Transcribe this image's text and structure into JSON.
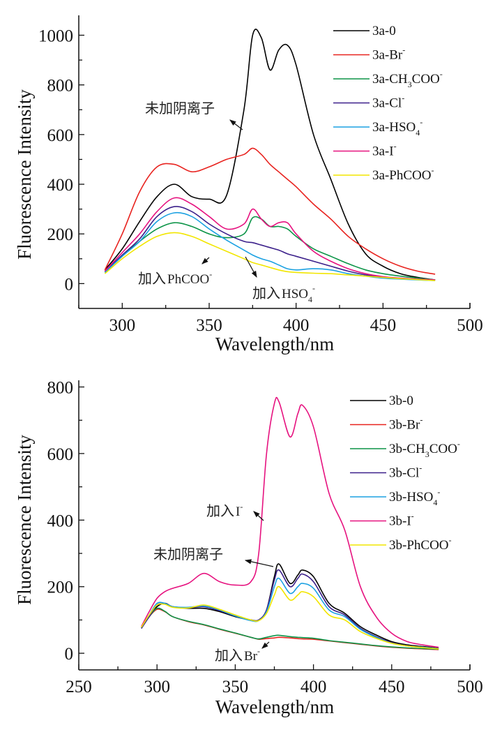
{
  "chart_data": [
    {
      "type": "line",
      "panel": "top",
      "title": "",
      "xlabel": "Wavelength/nm",
      "ylabel": "Fluorescence Intensity",
      "xlim": [
        275,
        500
      ],
      "ylim": [
        -100,
        1080
      ],
      "xticks": [
        300,
        350,
        400,
        450,
        500
      ],
      "yticks": [
        0,
        200,
        400,
        600,
        800,
        1000
      ],
      "grid": false,
      "legend_position": "top-right",
      "x": [
        290,
        300,
        310,
        320,
        330,
        340,
        350,
        360,
        370,
        375,
        380,
        385,
        390,
        395,
        400,
        410,
        420,
        430,
        440,
        450,
        460,
        470,
        480
      ],
      "series": [
        {
          "name": "3a-0",
          "base": "3a-",
          "main": "0",
          "sub": "",
          "sup": "",
          "color": "#000000",
          "values": [
            55,
            140,
            250,
            350,
            400,
            350,
            340,
            355,
            700,
            1000,
            990,
            860,
            940,
            960,
            880,
            600,
            420,
            240,
            120,
            70,
            40,
            25,
            15
          ]
        },
        {
          "name": "3a-Br-",
          "base": "3a-Br",
          "main": "",
          "sub": "",
          "sup": "-",
          "color": "#e8231f",
          "values": [
            55,
            200,
            370,
            470,
            480,
            450,
            470,
            500,
            520,
            545,
            520,
            480,
            450,
            420,
            390,
            320,
            260,
            190,
            140,
            100,
            70,
            50,
            38
          ]
        },
        {
          "name": "3a-CH3COO-",
          "base": "3a-CH",
          "main": "COO",
          "sub": "3",
          "sup": "-",
          "color": "#0b9447",
          "values": [
            45,
            110,
            170,
            220,
            245,
            230,
            200,
            185,
            200,
            265,
            260,
            230,
            230,
            220,
            190,
            140,
            110,
            80,
            55,
            40,
            30,
            22,
            15
          ]
        },
        {
          "name": "3a-Cl-",
          "base": "3a-Cl",
          "main": "",
          "sub": "",
          "sup": "-",
          "color": "#3b1f8a",
          "values": [
            48,
            115,
            180,
            270,
            310,
            290,
            240,
            200,
            170,
            165,
            155,
            145,
            135,
            120,
            110,
            90,
            70,
            50,
            35,
            25,
            20,
            17,
            14
          ]
        },
        {
          "name": "3a-HSO4-",
          "base": "3a-HSO",
          "main": "",
          "sub": "4",
          "sup": "-",
          "color": "#1ba1e2",
          "values": [
            45,
            110,
            170,
            250,
            285,
            270,
            220,
            175,
            135,
            115,
            100,
            90,
            75,
            60,
            55,
            60,
            55,
            40,
            30,
            22,
            18,
            15,
            12
          ]
        },
        {
          "name": "3a-I-",
          "base": "3a-I",
          "main": "",
          "sub": "",
          "sup": "-",
          "color": "#e6127f",
          "values": [
            50,
            125,
            200,
            290,
            345,
            320,
            270,
            220,
            240,
            300,
            260,
            230,
            245,
            245,
            200,
            130,
            90,
            60,
            40,
            28,
            22,
            18,
            15
          ]
        },
        {
          "name": "3a-PhCOO-",
          "base": "3a-PhCOO",
          "main": "",
          "sub": "",
          "sup": "-",
          "color": "#f2e600",
          "values": [
            40,
            100,
            150,
            190,
            205,
            190,
            160,
            130,
            100,
            85,
            75,
            65,
            55,
            48,
            45,
            42,
            40,
            35,
            30,
            25,
            20,
            16,
            12
          ]
        }
      ],
      "annotations": [
        {
          "text": "未加阴离子",
          "latin": "",
          "sub": "",
          "sup": "",
          "target": "3a-0"
        },
        {
          "text": "加入",
          "latin": "PhCOO",
          "sub": "",
          "sup": "-",
          "target": "3a-PhCOO-"
        },
        {
          "text": "加入",
          "latin": "HSO",
          "sub": "4",
          "sup": "-",
          "target": "3a-HSO4-"
        }
      ]
    },
    {
      "type": "line",
      "panel": "bottom",
      "title": "",
      "xlabel": "Wavelength/nm",
      "ylabel": "Fluorescence Intensity",
      "xlim": [
        250,
        500
      ],
      "ylim": [
        -50,
        820
      ],
      "xticks": [
        250,
        300,
        350,
        400,
        450,
        500
      ],
      "yticks": [
        0,
        200,
        400,
        600,
        800
      ],
      "grid": false,
      "legend_position": "top-right",
      "x": [
        290,
        295,
        300,
        305,
        310,
        320,
        330,
        340,
        350,
        360,
        365,
        370,
        375,
        378,
        385,
        390,
        393,
        400,
        410,
        420,
        430,
        440,
        450,
        460,
        470,
        480
      ],
      "series": [
        {
          "name": "3b-0",
          "base": "3b-",
          "main": "0",
          "sub": "",
          "sup": "",
          "color": "#000000",
          "values": [
            75,
            110,
            140,
            150,
            140,
            135,
            135,
            125,
            110,
            100,
            100,
            130,
            230,
            268,
            210,
            235,
            250,
            230,
            150,
            120,
            80,
            55,
            35,
            25,
            20,
            15
          ]
        },
        {
          "name": "3b-Br-",
          "base": "3b-Br",
          "main": "",
          "sub": "",
          "sup": "-",
          "color": "#e8231f",
          "values": [
            75,
            110,
            132,
            125,
            110,
            95,
            85,
            72,
            60,
            48,
            42,
            44,
            46,
            48,
            46,
            44,
            43,
            42,
            37,
            32,
            27,
            22,
            18,
            15,
            13,
            11
          ]
        },
        {
          "name": "3b-CH3COO-",
          "base": "3b-CH",
          "main": "COO",
          "sub": "3",
          "sup": "-",
          "color": "#0b9447",
          "values": [
            75,
            110,
            135,
            126,
            110,
            96,
            86,
            73,
            61,
            48,
            43,
            48,
            53,
            54,
            50,
            48,
            47,
            45,
            38,
            33,
            28,
            23,
            19,
            16,
            14,
            12
          ]
        },
        {
          "name": "3b-Cl-",
          "base": "3b-Cl",
          "main": "",
          "sub": "",
          "sup": "-",
          "color": "#3b1f8a",
          "values": [
            75,
            110,
            145,
            148,
            140,
            137,
            140,
            128,
            112,
            100,
            100,
            130,
            220,
            250,
            200,
            225,
            238,
            215,
            140,
            115,
            75,
            50,
            32,
            22,
            18,
            14
          ]
        },
        {
          "name": "3b-HSO4-",
          "base": "3b-HSO",
          "main": "",
          "sub": "4",
          "sup": "-",
          "color": "#1ba1e2",
          "values": [
            78,
            115,
            150,
            150,
            140,
            138,
            142,
            130,
            112,
            98,
            98,
            125,
            200,
            225,
            180,
            200,
            210,
            195,
            130,
            110,
            72,
            48,
            30,
            22,
            18,
            14
          ]
        },
        {
          "name": "3b-I-",
          "base": "3b-I",
          "main": "",
          "sub": "",
          "sup": "-",
          "color": "#e6127f",
          "values": [
            80,
            125,
            165,
            185,
            195,
            210,
            240,
            215,
            205,
            215,
            300,
            600,
            750,
            755,
            650,
            720,
            745,
            680,
            480,
            370,
            200,
            110,
            60,
            35,
            25,
            18
          ]
        },
        {
          "name": "3b-PhCOO-",
          "base": "3b-PhCOO",
          "main": "",
          "sub": "",
          "sup": "-",
          "color": "#f2e600",
          "values": [
            78,
            115,
            145,
            147,
            138,
            136,
            145,
            132,
            115,
            100,
            98,
            120,
            175,
            200,
            160,
            175,
            185,
            170,
            115,
            100,
            65,
            45,
            30,
            22,
            17,
            13
          ]
        }
      ],
      "annotations": [
        {
          "text": "加入",
          "latin": "I",
          "sub": "",
          "sup": "-",
          "target": "3b-I-"
        },
        {
          "text": "未加阴离子",
          "latin": "",
          "sub": "",
          "sup": "",
          "target": "3b-0"
        },
        {
          "text": "加入",
          "latin": "Br",
          "sub": "",
          "sup": "-",
          "target": "3b-Br-"
        }
      ]
    }
  ]
}
